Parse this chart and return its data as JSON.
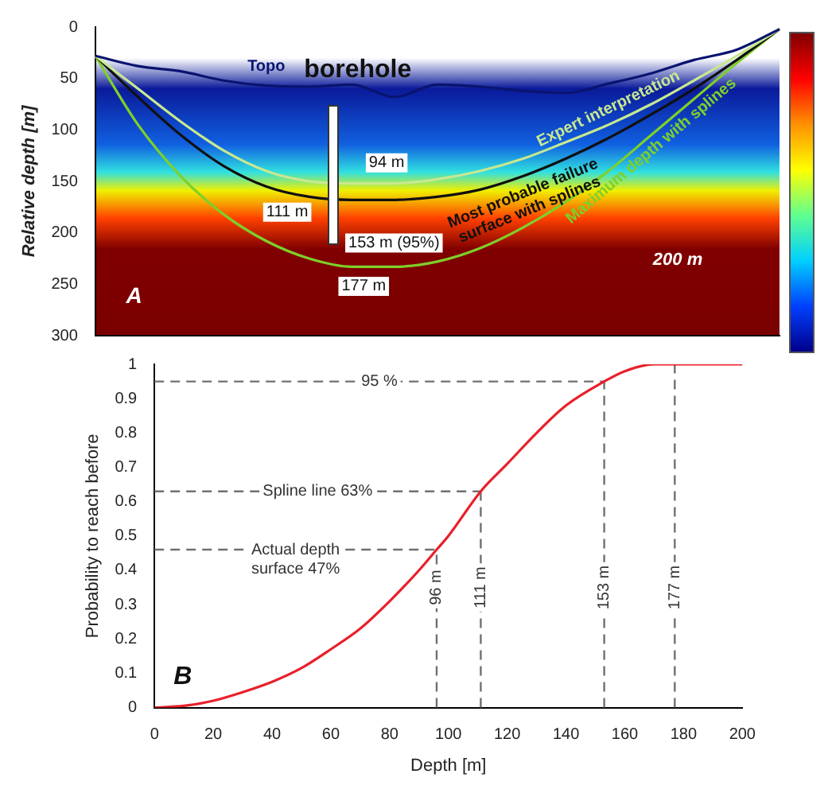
{
  "chart_data": [
    {
      "type": "line",
      "ylabel": "Relative depth [m]",
      "categories": [
        null,
        null,
        null,
        null,
        null,
        null,
        null,
        null,
        null,
        null,
        null,
        null,
        null,
        null,
        null,
        null,
        null
      ],
      "ylim": [
        300,
        0
      ],
      "yticks": [
        0,
        50,
        100,
        150,
        200,
        250,
        300
      ],
      "grid": false,
      "legend": false,
      "marker": "none",
      "line_style": "solid",
      "series": [
        {
          "name": "Topo",
          "color": "#0a1470",
          "values": [
            28,
            38,
            43,
            52,
            57,
            58,
            56,
            68,
            56,
            58,
            62,
            64,
            55,
            45,
            32,
            22,
            2
          ]
        },
        {
          "name": "Expert interpretation",
          "color": "#c8e890",
          "values": [
            28,
            60,
            92,
            120,
            140,
            150,
            152,
            152,
            148,
            140,
            128,
            112,
            95,
            75,
            52,
            28,
            2
          ]
        },
        {
          "name": "Most probable failure surface with splines",
          "color": "#101010",
          "values": [
            28,
            68,
            105,
            135,
            155,
            165,
            168,
            168,
            165,
            158,
            145,
            128,
            108,
            85,
            60,
            32,
            2
          ]
        },
        {
          "name": "Maximum depth with splines",
          "color": "#7ed02a",
          "values": [
            28,
            95,
            145,
            182,
            208,
            225,
            233,
            233,
            228,
            215,
            195,
            170,
            140,
            105,
            70,
            35,
            2
          ]
        }
      ],
      "annotations": [
        "borehole",
        "94 m",
        "111 m",
        "153 m (95%)",
        "177 m",
        "200 m",
        "A"
      ]
    },
    {
      "type": "line",
      "xlabel": "Depth [m]",
      "ylabel": "Probability to reach before",
      "xlim": [
        0,
        200
      ],
      "xticks": [
        0,
        20,
        40,
        60,
        80,
        100,
        120,
        140,
        160,
        180,
        200
      ],
      "ylim": [
        0,
        1
      ],
      "yticks": [
        0,
        0.1,
        0.2,
        0.3,
        0.4,
        0.5,
        0.6,
        0.7,
        0.8,
        0.9,
        1
      ],
      "grid": false,
      "legend": false,
      "marker": "none",
      "line_style": "solid",
      "series": [
        {
          "color": "#e8202a",
          "x": [
            0,
            10,
            20,
            30,
            40,
            50,
            60,
            70,
            80,
            90,
            96,
            100,
            111,
            120,
            130,
            140,
            153,
            160,
            170,
            180,
            200
          ],
          "values": [
            0,
            0.005,
            0.02,
            0.045,
            0.075,
            0.115,
            0.17,
            0.23,
            0.31,
            0.4,
            0.46,
            0.5,
            0.63,
            0.71,
            0.8,
            0.88,
            0.95,
            0.98,
            1,
            1,
            1
          ]
        }
      ],
      "ref_lines": [
        {
          "axis": "y",
          "value": 0.95,
          "label": "95 %",
          "color": "#707070",
          "line_style": "dashed"
        },
        {
          "axis": "y",
          "value": 0.63,
          "label": "Spline line 63%",
          "color": "#707070",
          "line_style": "dashed"
        },
        {
          "axis": "y",
          "value": 0.46,
          "label": "Actual depth surface 47%",
          "color": "#707070",
          "line_style": "dashed"
        },
        {
          "axis": "x",
          "value": 96,
          "label": "96 m",
          "color": "#707070",
          "line_style": "dashed"
        },
        {
          "axis": "x",
          "value": 111,
          "label": "111 m",
          "color": "#707070",
          "line_style": "dashed"
        },
        {
          "axis": "x",
          "value": 153,
          "label": "153 m",
          "color": "#707070",
          "line_style": "dashed"
        },
        {
          "axis": "x",
          "value": 177,
          "label": "177 m",
          "color": "#707070",
          "line_style": "dashed"
        }
      ],
      "annotations": [
        "B"
      ]
    }
  ]
}
